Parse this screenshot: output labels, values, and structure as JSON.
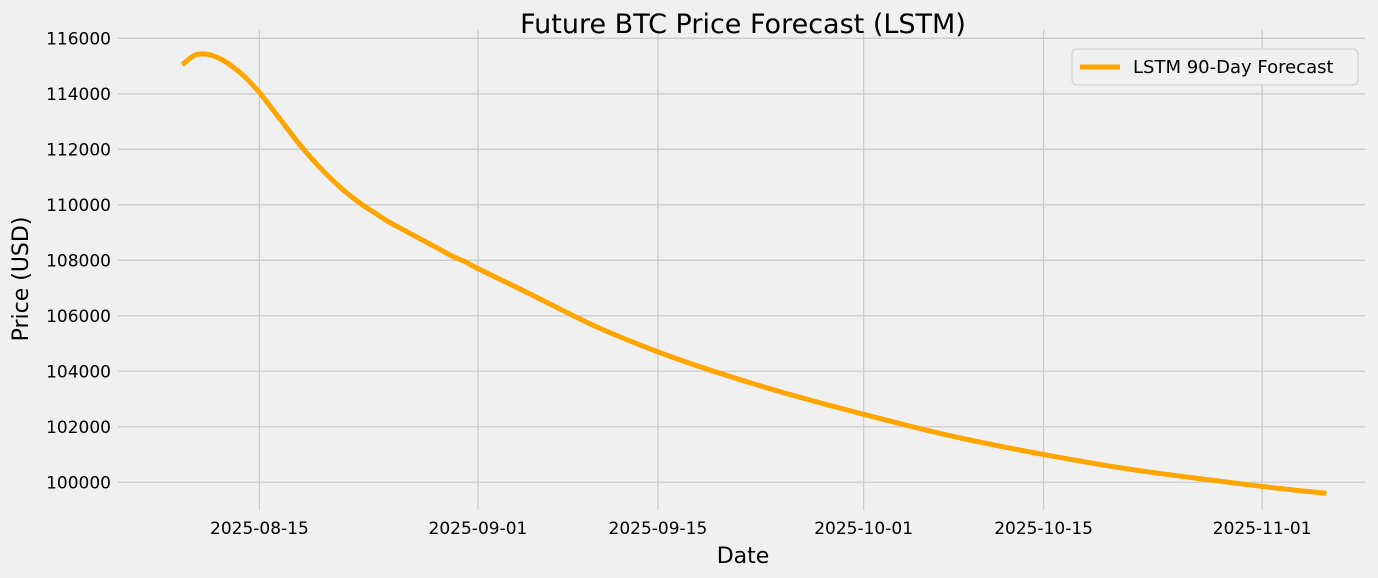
{
  "chart_data": {
    "type": "line",
    "title": "Future BTC Price Forecast (LSTM)",
    "xlabel": "Date",
    "ylabel": "Price (USD)",
    "grid": true,
    "legend_placement": "top-right",
    "xlim": [
      "2025-08-04",
      "2025-11-09"
    ],
    "ylim": [
      99000,
      116300
    ],
    "x_ticks": [
      "2025-08-15",
      "2025-09-01",
      "2025-09-15",
      "2025-10-01",
      "2025-10-15",
      "2025-11-01"
    ],
    "y_ticks": [
      100000,
      102000,
      104000,
      106000,
      108000,
      110000,
      112000,
      114000,
      116000
    ],
    "series": [
      {
        "name": "LSTM 90-Day Forecast",
        "color": "#ffa500",
        "points": [
          [
            "2025-08-09",
            115050
          ],
          [
            "2025-08-10",
            115400
          ],
          [
            "2025-08-11",
            115420
          ],
          [
            "2025-08-12",
            115250
          ],
          [
            "2025-08-13",
            114950
          ],
          [
            "2025-08-14",
            114550
          ],
          [
            "2025-08-15",
            114050
          ],
          [
            "2025-08-16",
            113450
          ],
          [
            "2025-08-17",
            112850
          ],
          [
            "2025-08-18",
            112250
          ],
          [
            "2025-08-19",
            111700
          ],
          [
            "2025-08-20",
            111200
          ],
          [
            "2025-08-21",
            110750
          ],
          [
            "2025-08-22",
            110350
          ],
          [
            "2025-08-23",
            110000
          ],
          [
            "2025-08-24",
            109700
          ],
          [
            "2025-08-25",
            109400
          ],
          [
            "2025-08-26",
            109150
          ],
          [
            "2025-08-27",
            108900
          ],
          [
            "2025-08-28",
            108650
          ],
          [
            "2025-08-29",
            108400
          ],
          [
            "2025-08-30",
            108150
          ],
          [
            "2025-08-31",
            107950
          ],
          [
            "2025-09-01",
            107700
          ],
          [
            "2025-09-05",
            106800
          ],
          [
            "2025-09-10",
            105650
          ],
          [
            "2025-09-15",
            104700
          ],
          [
            "2025-09-20",
            103900
          ],
          [
            "2025-09-25",
            103200
          ],
          [
            "2025-10-01",
            102450
          ],
          [
            "2025-10-08",
            101650
          ],
          [
            "2025-10-15",
            101000
          ],
          [
            "2025-10-22",
            100450
          ],
          [
            "2025-11-01",
            99850
          ],
          [
            "2025-11-06",
            99600
          ]
        ]
      }
    ]
  }
}
